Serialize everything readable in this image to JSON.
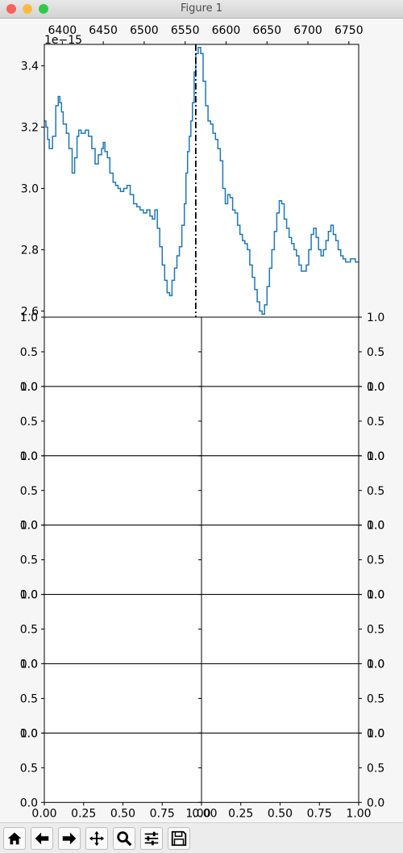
{
  "window": {
    "title": "Figure 1",
    "traffic_lights": [
      "#fc605c",
      "#fdbc40",
      "#34c84a"
    ]
  },
  "toolbar": {
    "buttons": [
      {
        "name": "home-button",
        "icon": "home-icon"
      },
      {
        "name": "back-button",
        "icon": "arrow-left-icon"
      },
      {
        "name": "forward-button",
        "icon": "arrow-right-icon"
      },
      {
        "name": "pan-button",
        "icon": "move-icon"
      },
      {
        "name": "zoom-button",
        "icon": "magnifier-icon"
      },
      {
        "name": "subplots-button",
        "icon": "sliders-icon"
      },
      {
        "name": "save-button",
        "icon": "floppy-icon"
      }
    ]
  },
  "chart_data": [
    {
      "type": "line",
      "style": "step",
      "x_scale_label": "",
      "y_offset_text": "1e−15",
      "xticks": [
        6400,
        6450,
        6500,
        6550,
        6600,
        6650,
        6700,
        6750
      ],
      "xtick_labels": [
        "6400",
        "6450",
        "6500",
        "6550",
        "6600",
        "6650",
        "6700",
        "6750"
      ],
      "xlim": [
        6378,
        6762
      ],
      "xaxis_position": "top",
      "yticks": [
        2.6,
        2.8,
        3.0,
        3.2,
        3.4
      ],
      "ytick_labels": [
        "2.6",
        "2.8",
        "3.0",
        "3.2",
        "3.4"
      ],
      "ylim": [
        2.58,
        3.47
      ],
      "color": "#1f77b4",
      "vline": {
        "x": 6563,
        "style": "dash-dot",
        "color": "#000000"
      },
      "series": [
        {
          "x": [
            6378,
            6380,
            6382,
            6384,
            6388,
            6392,
            6395,
            6397,
            6399,
            6401,
            6405,
            6408,
            6412,
            6415,
            6418,
            6420,
            6423,
            6428,
            6432,
            6436,
            6440,
            6444,
            6448,
            6450,
            6452,
            6455,
            6458,
            6462,
            6465,
            6468,
            6471,
            6475,
            6479,
            6483,
            6487,
            6491,
            6495,
            6499,
            6503,
            6507,
            6510,
            6513,
            6516,
            6519,
            6522,
            6525,
            6528,
            6531,
            6534,
            6537,
            6540,
            6543,
            6546,
            6549,
            6551,
            6553,
            6555,
            6557,
            6559,
            6561,
            6563,
            6566,
            6569,
            6572,
            6575,
            6578,
            6581,
            6584,
            6587,
            6590,
            6593,
            6596,
            6599,
            6602,
            6605,
            6608,
            6611,
            6614,
            6617,
            6620,
            6623,
            6626,
            6629,
            6632,
            6635,
            6638,
            6641,
            6644,
            6647,
            6650,
            6653,
            6656,
            6659,
            6662,
            6665,
            6668,
            6671,
            6674,
            6677,
            6680,
            6683,
            6686,
            6689,
            6692,
            6695,
            6698,
            6701,
            6704,
            6707,
            6710,
            6713,
            6716,
            6719,
            6722,
            6725,
            6728,
            6731,
            6734,
            6737,
            6740,
            6743,
            6746,
            6749,
            6752,
            6755,
            6758,
            6762
          ],
          "y": [
            3.22,
            3.2,
            3.16,
            3.13,
            3.17,
            3.27,
            3.3,
            3.28,
            3.25,
            3.21,
            3.18,
            3.13,
            3.05,
            3.1,
            3.17,
            3.19,
            3.18,
            3.19,
            3.17,
            3.13,
            3.08,
            3.11,
            3.13,
            3.15,
            3.12,
            3.1,
            3.05,
            3.02,
            3.01,
            3.0,
            2.99,
            3.0,
            3.01,
            2.98,
            2.95,
            2.94,
            2.93,
            2.92,
            2.93,
            2.91,
            2.9,
            2.93,
            2.87,
            2.81,
            2.75,
            2.7,
            2.66,
            2.65,
            2.7,
            2.74,
            2.78,
            2.81,
            2.88,
            2.95,
            3.05,
            3.12,
            3.17,
            3.22,
            3.28,
            3.38,
            3.44,
            3.46,
            3.44,
            3.35,
            3.27,
            3.22,
            3.21,
            3.18,
            3.16,
            3.13,
            3.09,
            3.0,
            2.95,
            2.98,
            2.97,
            2.93,
            2.92,
            2.88,
            2.85,
            2.83,
            2.82,
            2.8,
            2.75,
            2.71,
            2.67,
            2.63,
            2.6,
            2.59,
            2.62,
            2.68,
            2.74,
            2.8,
            2.86,
            2.92,
            2.96,
            2.95,
            2.9,
            2.87,
            2.84,
            2.82,
            2.8,
            2.78,
            2.75,
            2.73,
            2.73,
            2.75,
            2.8,
            2.85,
            2.87,
            2.84,
            2.8,
            2.78,
            2.8,
            2.83,
            2.86,
            2.88,
            2.85,
            2.83,
            2.8,
            2.78,
            2.77,
            2.76,
            2.76,
            2.77,
            2.77,
            2.76,
            2.76
          ]
        }
      ]
    },
    {
      "type": "grid",
      "description_free": true,
      "rows": 7,
      "xticks": [
        0.0,
        0.25,
        0.5,
        0.75,
        1.0
      ],
      "xtick_labels_left": [
        "0.00",
        "0.25",
        "0.50",
        "0.75",
        "1.00"
      ],
      "xtick_labels_right": [
        "0.00",
        "0.25",
        "0.50",
        "0.75",
        "1.00"
      ],
      "yticks": [
        0.0,
        0.5,
        1.0
      ],
      "ytick_labels_top_row": [
        "0.0",
        "0.5",
        "1.0"
      ],
      "ytick_labels": [
        "0.0",
        "0.5",
        "1.0"
      ],
      "xlim": [
        0,
        1
      ],
      "ylim": [
        0,
        1
      ]
    }
  ]
}
